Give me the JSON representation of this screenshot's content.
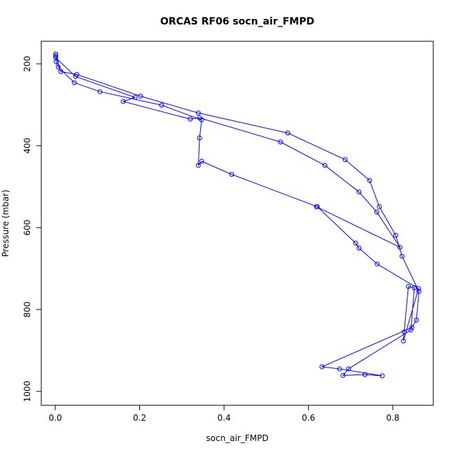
{
  "chart_data": {
    "type": "line",
    "title": "ORCAS RF06 socn_air_FMPD",
    "xlabel": "socn_air_FMPD",
    "ylabel": "Pressure (mbar)",
    "xlim": [
      -0.0332,
      0.896
    ],
    "ylim": [
      1034,
      145
    ],
    "xticks": [
      {
        "value": 0,
        "label": "0.0"
      },
      0.2,
      0.4,
      0.6,
      0.8
    ],
    "yticks": [
      200,
      400,
      600,
      800,
      1000
    ],
    "color": "#0000ff",
    "x": [
      0.001,
      0.001,
      0.013,
      0.051,
      0.202,
      0.339,
      0.551,
      0.687,
      0.745,
      0.768,
      0.807,
      0.822,
      0.862,
      0.856,
      0.845,
      0.632,
      0.674,
      0.775,
      0.734,
      0.682,
      0.695,
      0.843,
      0.851,
      0.837,
      0.827,
      0.825,
      0.861,
      0.763,
      0.72,
      0.712,
      0.621,
      0.418,
      0.347,
      0.339,
      0.342,
      0.347,
      0.252,
      0.106,
      0.045,
      0.007,
      0.002,
      0.001,
      0.048,
      0.189,
      0.161,
      0.32,
      0.342,
      0.534,
      0.639,
      0.72,
      0.762,
      0.817,
      0.619
    ],
    "values": [
      176,
      180,
      219,
      226,
      279,
      320,
      369,
      434,
      485,
      549,
      619,
      670,
      756,
      826,
      844,
      940,
      945,
      962,
      959,
      961,
      945,
      850,
      747,
      744,
      855,
      877,
      749,
      689,
      650,
      638,
      549,
      470,
      438,
      448,
      381,
      337,
      301,
      268,
      246,
      208,
      195,
      185,
      231,
      282,
      292,
      335,
      332,
      391,
      448,
      513,
      562,
      648,
      549
    ]
  }
}
